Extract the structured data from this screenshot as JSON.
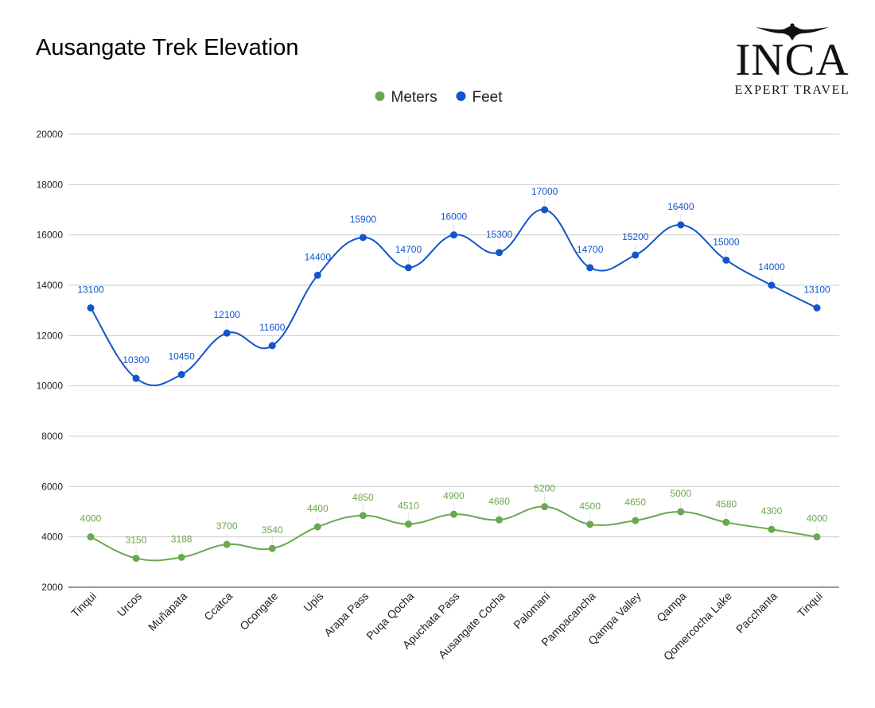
{
  "title": "Ausangate Trek Elevation",
  "logo": {
    "main": "INCA",
    "sub": "EXPERT TRAVEL"
  },
  "chart_data": {
    "type": "line",
    "title": "Ausangate Trek Elevation",
    "xlabel": "",
    "ylabel": "",
    "ylim": [
      2000,
      20000
    ],
    "yticks": [
      2000,
      4000,
      6000,
      8000,
      10000,
      12000,
      14000,
      16000,
      18000,
      20000
    ],
    "grid": true,
    "legend_position": "top-center",
    "categories": [
      "Tinqui",
      "Urcos",
      "Muñapata",
      "Ccatca",
      "Ocongate",
      "Upis",
      "Arapa Pass",
      "Puqa Qocha",
      "Apuchata Pass",
      "Ausangate Cocha",
      "Palomani",
      "Pampacancha",
      "Qampa Valley",
      "Qampa",
      "Qomercocha Lake",
      "Pacchanta",
      "Tinqui"
    ],
    "series": [
      {
        "name": "Meters",
        "color": "#6aa84f",
        "values": [
          4000,
          3150,
          3188,
          3700,
          3540,
          4400,
          4850,
          4510,
          4900,
          4680,
          5200,
          4500,
          4650,
          5000,
          4580,
          4300,
          4000
        ]
      },
      {
        "name": "Feet",
        "color": "#1155cc",
        "values": [
          13100,
          10300,
          10450,
          12100,
          11600,
          14400,
          15900,
          14700,
          16000,
          15300,
          17000,
          14700,
          15200,
          16400,
          15000,
          14000,
          13100
        ]
      }
    ]
  }
}
